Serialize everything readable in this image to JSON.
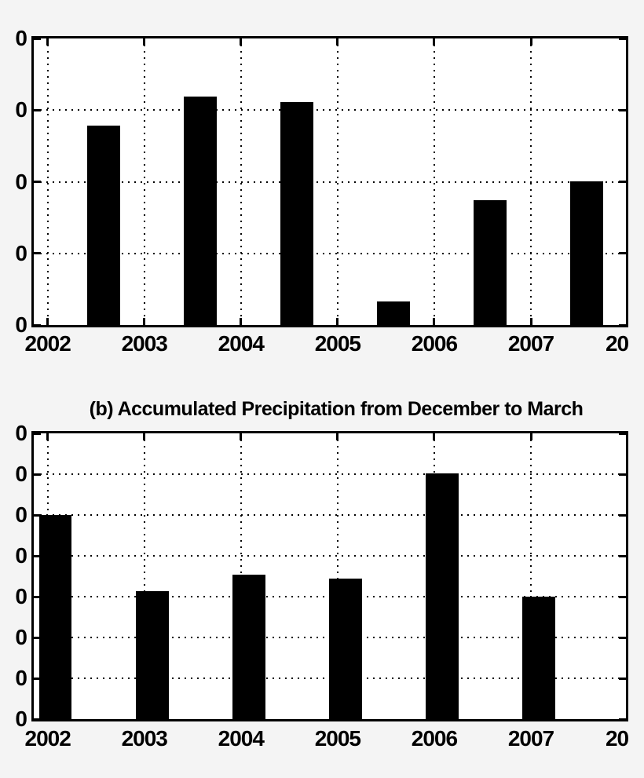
{
  "figure": {
    "background_color": "#f4f4f4",
    "plot_background_color": "#ffffff",
    "ink_color": "#000000",
    "grid_style": "dotted"
  },
  "chart_data": [
    {
      "id": "a",
      "type": "bar",
      "title": "",
      "bar_color": "#000000",
      "grid": "dotted",
      "legend_position": "none",
      "x_years": [
        2002,
        2003,
        2004,
        2005,
        2006,
        2007
      ],
      "values_gridline_units": [
        2.78,
        3.19,
        3.11,
        0.33,
        1.74,
        2.01
      ],
      "ylim_gridline_units": [
        0,
        4
      ],
      "bar_center_offset_years": 0.58,
      "bar_width_years": 0.34,
      "y_tick_labels": [
        "0",
        "0",
        "0",
        "0",
        "0"
      ],
      "x_ticks": [
        {
          "label": "2002",
          "year": 2002
        },
        {
          "label": "2003",
          "year": 2003
        },
        {
          "label": "2004",
          "year": 2004
        },
        {
          "label": "2005",
          "year": 2005
        },
        {
          "label": "2006",
          "year": 2006
        },
        {
          "label": "2007",
          "year": 2007
        },
        {
          "label": "20",
          "year": 2007.89
        }
      ]
    },
    {
      "id": "b",
      "type": "bar",
      "title": "(b) Accumulated Precipitation from December to March",
      "bar_color": "#000000",
      "grid": "dotted",
      "legend_position": "none",
      "x_years": [
        2002,
        2003,
        2004,
        2005,
        2006,
        2007
      ],
      "values_gridline_units": [
        5.0,
        3.13,
        3.53,
        3.44,
        6.01,
        3.0
      ],
      "ylim_gridline_units": [
        0,
        7
      ],
      "bar_center_offset_years": 0.08,
      "bar_width_years": 0.34,
      "y_tick_labels": [
        "0",
        "0",
        "0",
        "0",
        "0",
        "0",
        "0",
        "0"
      ],
      "x_ticks": [
        {
          "label": "2002",
          "year": 2002
        },
        {
          "label": "2003",
          "year": 2003
        },
        {
          "label": "2004",
          "year": 2004
        },
        {
          "label": "2005",
          "year": 2005
        },
        {
          "label": "2006",
          "year": 2006
        },
        {
          "label": "2007",
          "year": 2007
        },
        {
          "label": "20",
          "year": 2007.89
        }
      ]
    }
  ]
}
